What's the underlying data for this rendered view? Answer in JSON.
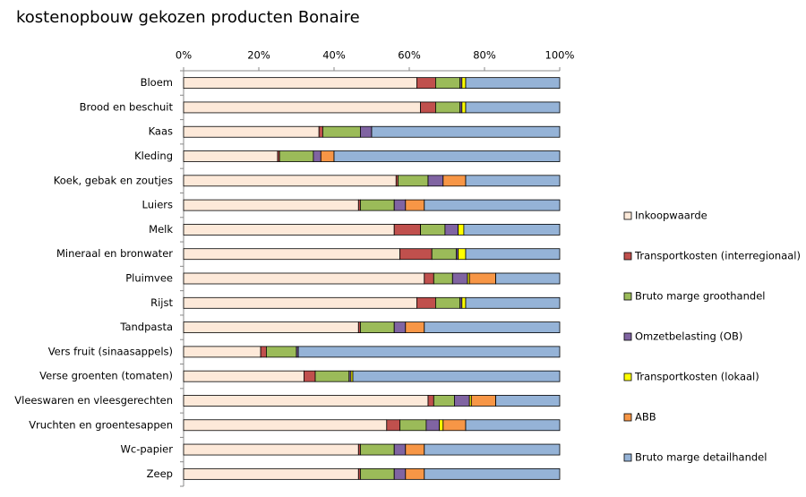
{
  "chart_data": {
    "type": "stacked-bar-horizontal",
    "title": "kostenopbouw gekozen producten Bonaire",
    "categories": [
      "Bloem",
      "Brood en beschuit",
      "Kaas",
      "Kleding",
      "Koek, gebak en zoutjes",
      "Luiers",
      "Melk",
      "Mineraal en bronwater",
      "Pluimvee",
      "Rijst",
      "Tandpasta",
      "Vers fruit (sinaasappels)",
      "Verse groenten (tomaten)",
      "Vleeswaren en vleesgerechten",
      "Vruchten en groentesappen",
      "Wc-papier",
      "Zeep"
    ],
    "series": [
      {
        "name": "Inkoopwaarde",
        "color": "#fde9d9",
        "values": [
          62,
          63,
          36,
          25,
          56.5,
          46.5,
          56,
          57.5,
          64,
          62,
          46.5,
          20.5,
          32,
          65,
          54,
          46.5,
          46.5
        ]
      },
      {
        "name": "Transportkosten (interregionaal)",
        "color": "#c0504d",
        "values": [
          5,
          4,
          1,
          0.5,
          0.5,
          0.5,
          7,
          8.5,
          2.5,
          5,
          0.5,
          1.5,
          3,
          1.5,
          3.5,
          0.5,
          0.5
        ]
      },
      {
        "name": "Bruto marge groothandel",
        "color": "#9bbb59",
        "values": [
          6.5,
          6.5,
          10,
          9,
          8,
          9,
          6.5,
          6.5,
          5,
          6.5,
          9,
          8,
          9,
          5.5,
          7,
          9,
          9
        ]
      },
      {
        "name": "Omzetbelasting (OB)",
        "color": "#8064a2",
        "values": [
          0.5,
          0.5,
          3,
          2,
          4,
          3,
          3.5,
          0.5,
          4,
          0.5,
          3,
          0.5,
          0.5,
          4,
          3.5,
          3,
          3
        ]
      },
      {
        "name": "Transportkosten (lokaal)",
        "color": "#ffff00",
        "values": [
          1,
          1,
          0,
          0,
          0,
          0,
          1.5,
          2,
          0.5,
          1,
          0,
          0,
          0.5,
          0.5,
          1,
          0,
          0
        ]
      },
      {
        "name": "ABB",
        "color": "#f79646",
        "values": [
          0,
          0,
          0,
          3.5,
          6,
          5,
          0,
          0,
          7,
          0,
          5,
          0,
          0,
          6.5,
          6,
          5,
          5
        ]
      },
      {
        "name": "Bruto marge detailhandel",
        "color": "#95b3d7",
        "values": [
          25,
          25,
          50,
          60,
          25,
          36,
          25.5,
          25,
          17,
          25,
          36,
          69.5,
          55,
          17,
          25,
          36,
          36
        ]
      }
    ],
    "xlim": [
      0,
      100
    ],
    "xticks": [
      {
        "value": 0,
        "label": "0%"
      },
      {
        "value": 20,
        "label": "20%"
      },
      {
        "value": 40,
        "label": "40%"
      },
      {
        "value": 60,
        "label": "60%"
      },
      {
        "value": 80,
        "label": "80%"
      },
      {
        "value": 100,
        "label": "100%"
      }
    ]
  }
}
